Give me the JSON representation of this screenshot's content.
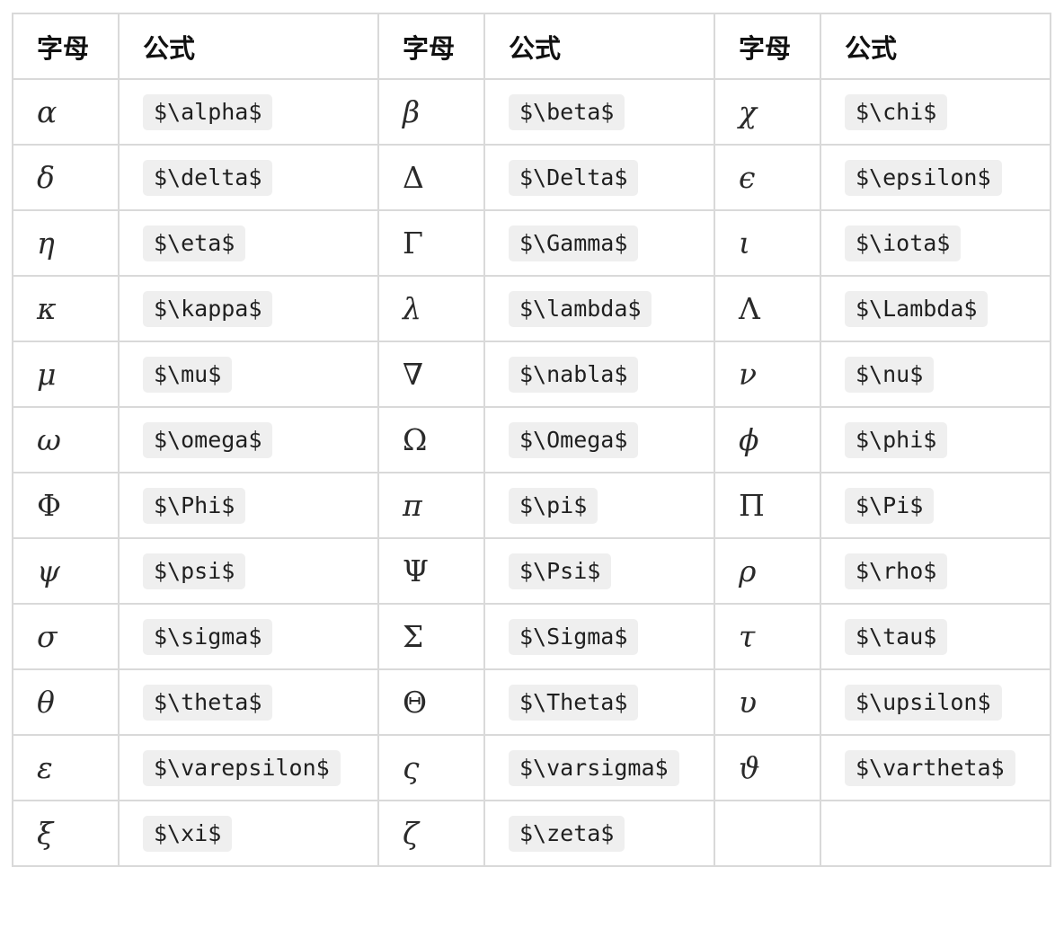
{
  "header": [
    "字母",
    "公式",
    "字母",
    "公式",
    "字母",
    "公式"
  ],
  "rows": [
    [
      {
        "letter": "α",
        "formula": "$\\alpha$"
      },
      {
        "letter": "β",
        "formula": "$\\beta$"
      },
      {
        "letter": "χ",
        "formula": "$\\chi$"
      }
    ],
    [
      {
        "letter": "δ",
        "formula": "$\\delta$"
      },
      {
        "letter": "Δ",
        "formula": "$\\Delta$",
        "upright": true
      },
      {
        "letter": "ϵ",
        "formula": "$\\epsilon$"
      }
    ],
    [
      {
        "letter": "η",
        "formula": "$\\eta$"
      },
      {
        "letter": "Γ",
        "formula": "$\\Gamma$",
        "upright": true
      },
      {
        "letter": "ι",
        "formula": "$\\iota$"
      }
    ],
    [
      {
        "letter": "κ",
        "formula": "$\\kappa$"
      },
      {
        "letter": "λ",
        "formula": "$\\lambda$"
      },
      {
        "letter": "Λ",
        "formula": "$\\Lambda$",
        "upright": true
      }
    ],
    [
      {
        "letter": "μ",
        "formula": "$\\mu$"
      },
      {
        "letter": "∇",
        "formula": "$\\nabla$",
        "upright": true
      },
      {
        "letter": "ν",
        "formula": "$\\nu$"
      }
    ],
    [
      {
        "letter": "ω",
        "formula": "$\\omega$"
      },
      {
        "letter": "Ω",
        "formula": "$\\Omega$",
        "upright": true
      },
      {
        "letter": "ϕ",
        "formula": "$\\phi$"
      }
    ],
    [
      {
        "letter": "Φ",
        "formula": "$\\Phi$",
        "upright": true
      },
      {
        "letter": "π",
        "formula": "$\\pi$"
      },
      {
        "letter": "Π",
        "formula": "$\\Pi$",
        "upright": true
      }
    ],
    [
      {
        "letter": "ψ",
        "formula": "$\\psi$"
      },
      {
        "letter": "Ψ",
        "formula": "$\\Psi$",
        "upright": true
      },
      {
        "letter": "ρ",
        "formula": "$\\rho$"
      }
    ],
    [
      {
        "letter": "σ",
        "formula": "$\\sigma$"
      },
      {
        "letter": "Σ",
        "formula": "$\\Sigma$",
        "upright": true
      },
      {
        "letter": "τ",
        "formula": "$\\tau$"
      }
    ],
    [
      {
        "letter": "θ",
        "formula": "$\\theta$"
      },
      {
        "letter": "Θ",
        "formula": "$\\Theta$",
        "upright": true
      },
      {
        "letter": "υ",
        "formula": "$\\upsilon$"
      }
    ],
    [
      {
        "letter": "ε",
        "formula": "$\\varepsilon$"
      },
      {
        "letter": "ς",
        "formula": "$\\varsigma$"
      },
      {
        "letter": "ϑ",
        "formula": "$\\vartheta$"
      }
    ],
    [
      {
        "letter": "ξ",
        "formula": "$\\xi$"
      },
      {
        "letter": "ζ",
        "formula": "$\\zeta$"
      },
      {
        "letter": "",
        "formula": ""
      }
    ]
  ]
}
